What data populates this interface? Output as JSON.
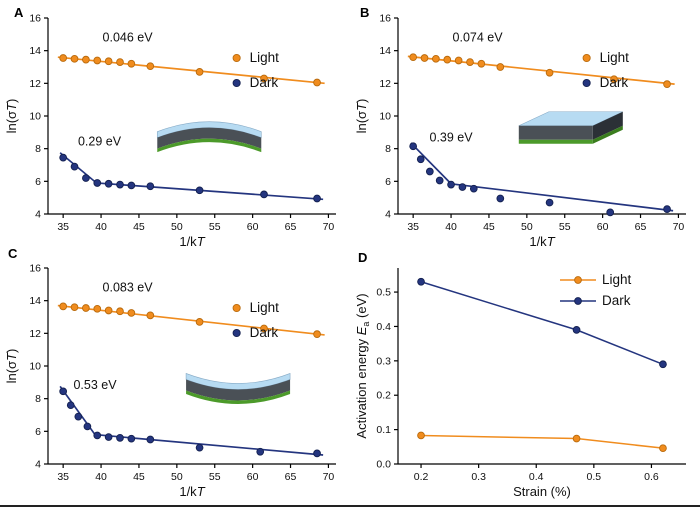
{
  "figure": {
    "colors": {
      "light": "#F08C1E",
      "light_edge": "#B96A0C",
      "dark": "#24357F",
      "dark_edge": "#13204F",
      "axis": "#000000",
      "inset_top": "#B7DBF2",
      "inset_top_edge": "#86AAC6",
      "inset_body": "#4A5056",
      "inset_side": "#2B3036",
      "inset_green": "#4C9A2A",
      "inset_green_dark": "#3A7D1E"
    }
  },
  "chart_data": [
    {
      "panel_label": "A",
      "type": "scatter",
      "xlabel": [
        {
          "t": "1/k"
        },
        {
          "t": "T",
          "i": true
        }
      ],
      "ylabel": [
        {
          "t": "ln(σ"
        },
        {
          "t": "T",
          "i": true
        },
        {
          "t": ")"
        }
      ],
      "xlim": [
        33,
        71
      ],
      "ylim": [
        4,
        16
      ],
      "xticks": [
        35,
        40,
        45,
        50,
        55,
        60,
        65,
        70
      ],
      "yticks": [
        4,
        6,
        8,
        10,
        12,
        14,
        16
      ],
      "legend": {
        "style": "marker",
        "items": [
          {
            "label": "Light",
            "color": "light"
          },
          {
            "label": "Dark",
            "color": "dark"
          }
        ]
      },
      "annotations": [
        {
          "text": "0.046 eV",
          "x": 43.5,
          "y": 14.55
        },
        {
          "text": "0.29 eV",
          "x": 39.8,
          "y": 8.2
        }
      ],
      "inset": {
        "type": "bent-up",
        "fx": 0.56,
        "fy": 0.58
      },
      "series": [
        {
          "name": "Light",
          "color": "light",
          "x": [
            35,
            36.5,
            38,
            39.5,
            41,
            42.5,
            44,
            46.5,
            53,
            61.5,
            68.5
          ],
          "y": [
            13.55,
            13.5,
            13.45,
            13.4,
            13.35,
            13.3,
            13.2,
            13.05,
            12.7,
            12.3,
            12.05
          ],
          "fit": [
            [
              34.3,
              13.6
            ],
            [
              69.5,
              12.0
            ]
          ]
        },
        {
          "name": "Dark",
          "color": "dark",
          "x": [
            35,
            36.5,
            38,
            39.5,
            41,
            42.5,
            44,
            46.5,
            53,
            61.5,
            68.5
          ],
          "y": [
            7.45,
            6.9,
            6.2,
            5.9,
            5.85,
            5.8,
            5.75,
            5.7,
            5.45,
            5.2,
            4.95
          ],
          "fit": [
            [
              34.6,
              7.75
            ],
            [
              39.4,
              5.9
            ],
            [
              69.3,
              4.9
            ]
          ]
        }
      ]
    },
    {
      "panel_label": "B",
      "type": "scatter",
      "xlabel": [
        {
          "t": "1/k"
        },
        {
          "t": "T",
          "i": true
        }
      ],
      "ylabel": [
        {
          "t": "ln(σ"
        },
        {
          "t": "T",
          "i": true
        },
        {
          "t": ")"
        }
      ],
      "xlim": [
        33,
        71
      ],
      "ylim": [
        4,
        16
      ],
      "xticks": [
        35,
        40,
        45,
        50,
        55,
        60,
        65,
        70
      ],
      "yticks": [
        4,
        6,
        8,
        10,
        12,
        14,
        16
      ],
      "legend": {
        "style": "marker",
        "items": [
          {
            "label": "Light",
            "color": "light"
          },
          {
            "label": "Dark",
            "color": "dark"
          }
        ]
      },
      "annotations": [
        {
          "text": "0.074 eV",
          "x": 43.5,
          "y": 14.55
        },
        {
          "text": "0.39 eV",
          "x": 40.0,
          "y": 8.45
        }
      ],
      "inset": {
        "type": "flat",
        "fx": 0.6,
        "fy": 0.56
      },
      "series": [
        {
          "name": "Light",
          "color": "light",
          "x": [
            35,
            36.5,
            38,
            39.5,
            41,
            42.5,
            44,
            46.5,
            53,
            61.5,
            68.5
          ],
          "y": [
            13.6,
            13.55,
            13.5,
            13.45,
            13.4,
            13.3,
            13.2,
            13.0,
            12.65,
            12.25,
            11.95
          ],
          "fit": [
            [
              34.3,
              13.65
            ],
            [
              69.5,
              11.95
            ]
          ]
        },
        {
          "name": "Dark",
          "color": "dark",
          "x": [
            35,
            36,
            37.2,
            38.5,
            40,
            41.5,
            43,
            46.5,
            53,
            61,
            68.5
          ],
          "y": [
            8.15,
            7.35,
            6.6,
            6.05,
            5.8,
            5.65,
            5.55,
            4.95,
            4.7,
            4.1,
            4.3
          ],
          "fit": [
            [
              34.7,
              8.35
            ],
            [
              40,
              5.85
            ],
            [
              69.3,
              4.2
            ]
          ]
        }
      ]
    },
    {
      "panel_label": "C",
      "type": "scatter",
      "xlabel": [
        {
          "t": "1/k"
        },
        {
          "t": "T",
          "i": true
        }
      ],
      "ylabel": [
        {
          "t": "ln(σ"
        },
        {
          "t": "T",
          "i": true
        },
        {
          "t": ")"
        }
      ],
      "xlim": [
        33,
        71
      ],
      "ylim": [
        4,
        16
      ],
      "xticks": [
        35,
        40,
        45,
        50,
        55,
        60,
        65,
        70
      ],
      "yticks": [
        4,
        6,
        8,
        10,
        12,
        14,
        16
      ],
      "legend": {
        "style": "marker",
        "items": [
          {
            "label": "Light",
            "color": "light"
          },
          {
            "label": "Dark",
            "color": "dark"
          }
        ]
      },
      "annotations": [
        {
          "text": "0.083 eV",
          "x": 43.5,
          "y": 14.55
        },
        {
          "text": "0.53 eV",
          "x": 39.2,
          "y": 8.6
        }
      ],
      "inset": {
        "type": "bent-down",
        "fx": 0.66,
        "fy": 0.64
      },
      "series": [
        {
          "name": "Light",
          "color": "light",
          "x": [
            35,
            36.5,
            38,
            39.5,
            41,
            42.5,
            44,
            46.5,
            53,
            61.5,
            68.5
          ],
          "y": [
            13.65,
            13.6,
            13.55,
            13.5,
            13.4,
            13.35,
            13.25,
            13.1,
            12.7,
            12.3,
            11.95
          ],
          "fit": [
            [
              34.3,
              13.7
            ],
            [
              69.5,
              11.9
            ]
          ]
        },
        {
          "name": "Dark",
          "color": "dark",
          "x": [
            35,
            36,
            37,
            38.2,
            39.5,
            41,
            42.5,
            44,
            46.5,
            53,
            61,
            68.5
          ],
          "y": [
            8.45,
            7.6,
            6.9,
            6.3,
            5.75,
            5.65,
            5.6,
            5.55,
            5.5,
            5.0,
            4.75,
            4.65
          ],
          "fit": [
            [
              34.6,
              8.75
            ],
            [
              39.2,
              5.8
            ],
            [
              69.3,
              4.55
            ]
          ]
        }
      ]
    },
    {
      "panel_label": "D",
      "type": "line",
      "xlabel": [
        {
          "t": "Strain (%)"
        }
      ],
      "ylabel": [
        {
          "t": "Activation energy "
        },
        {
          "t": "E",
          "i": true
        },
        {
          "t": "a",
          "sub": true
        },
        {
          "t": " (eV)"
        }
      ],
      "xlim": [
        0.16,
        0.66
      ],
      "ylim": [
        0,
        0.57
      ],
      "xticks": [
        0.2,
        0.3,
        0.4,
        0.5,
        0.6
      ],
      "yticks": [
        0,
        0.1,
        0.2,
        0.3,
        0.4,
        0.5
      ],
      "tick_decimals": {
        "x": 1,
        "y": 1
      },
      "legend": {
        "style": "line-marker",
        "items": [
          {
            "label": "Light",
            "color": "light"
          },
          {
            "label": "Dark",
            "color": "dark"
          }
        ]
      },
      "annotations": [],
      "series": [
        {
          "name": "Light",
          "color": "light",
          "line": true,
          "x": [
            0.2,
            0.47,
            0.62
          ],
          "y": [
            0.083,
            0.074,
            0.046
          ]
        },
        {
          "name": "Dark",
          "color": "dark",
          "line": true,
          "x": [
            0.2,
            0.47,
            0.62
          ],
          "y": [
            0.53,
            0.39,
            0.29
          ]
        }
      ]
    }
  ]
}
